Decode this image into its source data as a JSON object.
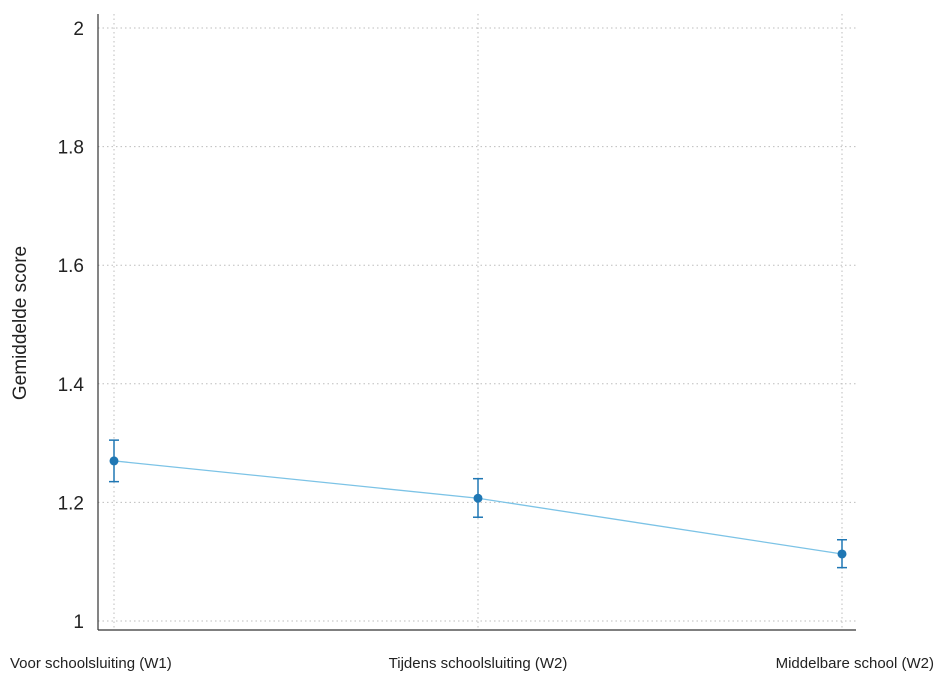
{
  "chart_data": {
    "type": "line",
    "title": "",
    "xlabel": "",
    "ylabel": "Gemiddelde score",
    "ylim": [
      1,
      2
    ],
    "yticks": [
      1,
      1.2,
      1.4,
      1.6,
      1.8,
      2
    ],
    "ytick_labels": [
      "1",
      "1.2",
      "1.4",
      "1.6",
      "1.8",
      "2"
    ],
    "categories": [
      "Voor schoolsluiting (W1)",
      "Tijdens schoolsluiting (W2)",
      "Middelbare school (W2)"
    ],
    "series": [
      {
        "values": [
          1.27,
          1.207,
          1.113
        ],
        "error_low": [
          1.235,
          1.175,
          1.09
        ],
        "error_high": [
          1.305,
          1.24,
          1.137
        ]
      }
    ],
    "grid": true,
    "grid_style": "dotted",
    "legend": "none",
    "colors": {
      "line": "#7cc3e6",
      "marker": "#1f77b4",
      "errorbar": "#1f77b4",
      "grid": "#bdbdbd",
      "axis": "#333333"
    }
  }
}
